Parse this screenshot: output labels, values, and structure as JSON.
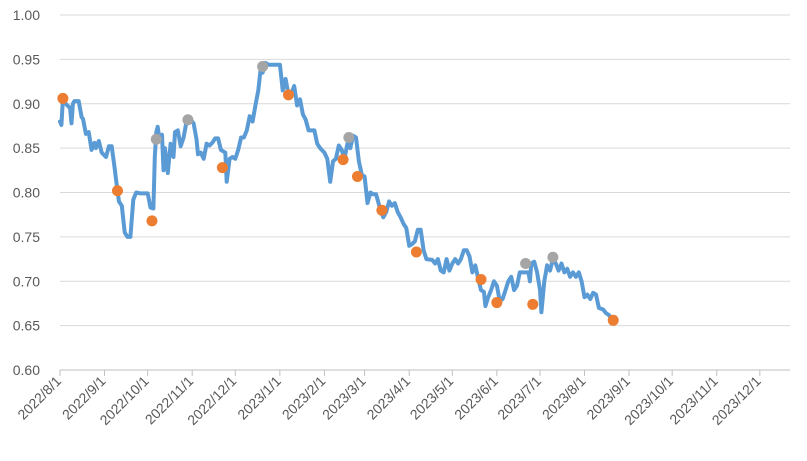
{
  "chart_data": {
    "type": "line",
    "title": "",
    "xlabel": "",
    "ylabel": "",
    "ylim": [
      0.6,
      1.0
    ],
    "y_ticks": [
      "0.60",
      "0.65",
      "0.70",
      "0.75",
      "0.80",
      "0.85",
      "0.90",
      "0.95",
      "1.00"
    ],
    "x_ticks": [
      "2022/8/1",
      "2022/9/1",
      "2022/10/1",
      "2022/11/1",
      "2022/12/1",
      "2023/1/1",
      "2023/2/1",
      "2023/3/1",
      "2023/4/1",
      "2023/5/1",
      "2023/6/1",
      "2023/7/1",
      "2023/8/1",
      "2023/9/1",
      "2023/10/1",
      "2023/11/1",
      "2023/12/1"
    ],
    "grid": true,
    "legend": "none",
    "colors": {
      "line": "#5B9BD5",
      "orange_markers": "#ED7D31",
      "gray_markers": "#A5A5A5",
      "grid": "#D9D9D9"
    },
    "x_range": [
      "2022/8/1",
      "2023/12/22"
    ],
    "series": [
      {
        "style": "line",
        "points": [
          [
            "2022/8/1",
            0.88
          ],
          [
            "2022/8/2",
            0.876
          ],
          [
            "2022/8/3",
            0.905
          ],
          [
            "2022/8/5",
            0.9
          ],
          [
            "2022/8/8",
            0.895
          ],
          [
            "2022/8/9",
            0.878
          ],
          [
            "2022/8/10",
            0.9
          ],
          [
            "2022/8/11",
            0.903
          ],
          [
            "2022/8/14",
            0.903
          ],
          [
            "2022/8/16",
            0.885
          ],
          [
            "2022/8/17",
            0.883
          ],
          [
            "2022/8/19",
            0.866
          ],
          [
            "2022/8/21",
            0.868
          ],
          [
            "2022/8/23",
            0.848
          ],
          [
            "2022/8/25",
            0.856
          ],
          [
            "2022/8/26",
            0.85
          ],
          [
            "2022/8/28",
            0.858
          ],
          [
            "2022/8/30",
            0.845
          ],
          [
            "2022/9/2",
            0.84
          ],
          [
            "2022/9/4",
            0.852
          ],
          [
            "2022/9/6",
            0.852
          ],
          [
            "2022/9/8",
            0.828
          ],
          [
            "2022/9/9",
            0.815
          ],
          [
            "2022/9/11",
            0.79
          ],
          [
            "2022/9/13",
            0.785
          ],
          [
            "2022/9/15",
            0.755
          ],
          [
            "2022/9/17",
            0.75
          ],
          [
            "2022/9/19",
            0.75
          ],
          [
            "2022/9/21",
            0.792
          ],
          [
            "2022/9/23",
            0.8
          ],
          [
            "2022/9/26",
            0.799
          ],
          [
            "2022/9/29",
            0.799
          ],
          [
            "2022/10/1",
            0.799
          ],
          [
            "2022/10/3",
            0.783
          ],
          [
            "2022/10/5",
            0.782
          ],
          [
            "2022/10/6",
            0.84
          ],
          [
            "2022/10/7",
            0.868
          ],
          [
            "2022/10/8",
            0.874
          ],
          [
            "2022/10/9",
            0.862
          ],
          [
            "2022/10/11",
            0.865
          ],
          [
            "2022/10/12",
            0.825
          ],
          [
            "2022/10/13",
            0.85
          ],
          [
            "2022/10/15",
            0.822
          ],
          [
            "2022/10/17",
            0.855
          ],
          [
            "2022/10/19",
            0.84
          ],
          [
            "2022/10/20",
            0.868
          ],
          [
            "2022/10/22",
            0.87
          ],
          [
            "2022/10/24",
            0.852
          ],
          [
            "2022/10/26",
            0.862
          ],
          [
            "2022/10/28",
            0.88
          ],
          [
            "2022/10/31",
            0.882
          ],
          [
            "2022/11/2",
            0.878
          ],
          [
            "2022/11/4",
            0.86
          ],
          [
            "2022/11/5",
            0.843
          ],
          [
            "2022/11/7",
            0.845
          ],
          [
            "2022/11/9",
            0.838
          ],
          [
            "2022/11/11",
            0.855
          ],
          [
            "2022/11/13",
            0.853
          ],
          [
            "2022/11/15",
            0.856
          ],
          [
            "2022/11/17",
            0.861
          ],
          [
            "2022/11/19",
            0.861
          ],
          [
            "2022/11/21",
            0.848
          ],
          [
            "2022/11/23",
            0.846
          ],
          [
            "2022/11/24",
            0.845
          ],
          [
            "2022/11/25",
            0.812
          ],
          [
            "2022/11/27",
            0.838
          ],
          [
            "2022/11/29",
            0.84
          ],
          [
            "2022/12/1",
            0.838
          ],
          [
            "2022/12/3",
            0.848
          ],
          [
            "2022/12/5",
            0.862
          ],
          [
            "2022/12/7",
            0.862
          ],
          [
            "2022/12/9",
            0.87
          ],
          [
            "2022/12/11",
            0.886
          ],
          [
            "2022/12/13",
            0.88
          ],
          [
            "2022/12/15",
            0.898
          ],
          [
            "2022/12/17",
            0.915
          ],
          [
            "2022/12/19",
            0.945
          ],
          [
            "2022/12/20",
            0.935
          ],
          [
            "2022/12/22",
            0.946
          ],
          [
            "2022/12/24",
            0.944
          ],
          [
            "2022/12/28",
            0.944
          ],
          [
            "2023/1/1",
            0.944
          ],
          [
            "2023/1/2",
            0.93
          ],
          [
            "2023/1/3",
            0.915
          ],
          [
            "2023/1/5",
            0.928
          ],
          [
            "2023/1/7",
            0.91
          ],
          [
            "2023/1/9",
            0.912
          ],
          [
            "2023/1/11",
            0.92
          ],
          [
            "2023/1/13",
            0.898
          ],
          [
            "2023/1/15",
            0.905
          ],
          [
            "2023/1/17",
            0.888
          ],
          [
            "2023/1/19",
            0.882
          ],
          [
            "2023/1/21",
            0.87
          ],
          [
            "2023/1/25",
            0.87
          ],
          [
            "2023/1/27",
            0.855
          ],
          [
            "2023/1/29",
            0.85
          ],
          [
            "2023/2/1",
            0.845
          ],
          [
            "2023/2/3",
            0.838
          ],
          [
            "2023/2/5",
            0.812
          ],
          [
            "2023/2/7",
            0.835
          ],
          [
            "2023/2/9",
            0.838
          ],
          [
            "2023/2/11",
            0.853
          ],
          [
            "2023/2/13",
            0.848
          ],
          [
            "2023/2/15",
            0.838
          ],
          [
            "2023/2/17",
            0.855
          ],
          [
            "2023/2/19",
            0.85
          ],
          [
            "2023/2/21",
            0.864
          ],
          [
            "2023/2/23",
            0.862
          ],
          [
            "2023/2/25",
            0.835
          ],
          [
            "2023/2/27",
            0.82
          ],
          [
            "2023/3/1",
            0.818
          ],
          [
            "2023/3/3",
            0.788
          ],
          [
            "2023/3/5",
            0.8
          ],
          [
            "2023/3/7",
            0.798
          ],
          [
            "2023/3/9",
            0.798
          ],
          [
            "2023/3/12",
            0.78
          ],
          [
            "2023/3/14",
            0.772
          ],
          [
            "2023/3/16",
            0.778
          ],
          [
            "2023/3/18",
            0.79
          ],
          [
            "2023/3/20",
            0.785
          ],
          [
            "2023/3/22",
            0.788
          ],
          [
            "2023/3/24",
            0.778
          ],
          [
            "2023/3/26",
            0.772
          ],
          [
            "2023/3/28",
            0.765
          ],
          [
            "2023/3/30",
            0.76
          ],
          [
            "2023/4/1",
            0.74
          ],
          [
            "2023/4/3",
            0.742
          ],
          [
            "2023/4/5",
            0.745
          ],
          [
            "2023/4/7",
            0.758
          ],
          [
            "2023/4/9",
            0.758
          ],
          [
            "2023/4/11",
            0.735
          ],
          [
            "2023/4/13",
            0.725
          ],
          [
            "2023/4/17",
            0.724
          ],
          [
            "2023/4/19",
            0.72
          ],
          [
            "2023/4/21",
            0.725
          ],
          [
            "2023/4/23",
            0.712
          ],
          [
            "2023/4/25",
            0.71
          ],
          [
            "2023/4/27",
            0.725
          ],
          [
            "2023/4/29",
            0.712
          ],
          [
            "2023/5/1",
            0.72
          ],
          [
            "2023/5/3",
            0.725
          ],
          [
            "2023/5/5",
            0.72
          ],
          [
            "2023/5/7",
            0.725
          ],
          [
            "2023/5/9",
            0.735
          ],
          [
            "2023/5/11",
            0.735
          ],
          [
            "2023/5/13",
            0.728
          ],
          [
            "2023/5/15",
            0.71
          ],
          [
            "2023/5/17",
            0.718
          ],
          [
            "2023/5/19",
            0.703
          ],
          [
            "2023/5/21",
            0.69
          ],
          [
            "2023/5/23",
            0.688
          ],
          [
            "2023/5/24",
            0.672
          ],
          [
            "2023/5/26",
            0.682
          ],
          [
            "2023/5/28",
            0.69
          ],
          [
            "2023/5/30",
            0.7
          ],
          [
            "2023/6/1",
            0.695
          ],
          [
            "2023/6/3",
            0.678
          ],
          [
            "2023/6/5",
            0.68
          ],
          [
            "2023/6/7",
            0.69
          ],
          [
            "2023/6/9",
            0.7
          ],
          [
            "2023/6/11",
            0.705
          ],
          [
            "2023/6/13",
            0.69
          ],
          [
            "2023/6/15",
            0.695
          ],
          [
            "2023/6/17",
            0.71
          ],
          [
            "2023/6/21",
            0.71
          ],
          [
            "2023/6/23",
            0.71
          ],
          [
            "2023/6/24",
            0.7
          ],
          [
            "2023/6/25",
            0.72
          ],
          [
            "2023/6/27",
            0.722
          ],
          [
            "2023/6/29",
            0.71
          ],
          [
            "2023/7/1",
            0.69
          ],
          [
            "2023/7/2",
            0.665
          ],
          [
            "2023/7/4",
            0.7
          ],
          [
            "2023/7/6",
            0.718
          ],
          [
            "2023/7/8",
            0.712
          ],
          [
            "2023/7/10",
            0.725
          ],
          [
            "2023/7/12",
            0.72
          ],
          [
            "2023/7/14",
            0.712
          ],
          [
            "2023/7/16",
            0.72
          ],
          [
            "2023/7/18",
            0.71
          ],
          [
            "2023/7/20",
            0.714
          ],
          [
            "2023/7/22",
            0.705
          ],
          [
            "2023/7/24",
            0.71
          ],
          [
            "2023/7/26",
            0.705
          ],
          [
            "2023/7/28",
            0.71
          ],
          [
            "2023/7/30",
            0.7
          ],
          [
            "2023/8/1",
            0.682
          ],
          [
            "2023/8/3",
            0.685
          ],
          [
            "2023/8/5",
            0.68
          ],
          [
            "2023/8/7",
            0.687
          ],
          [
            "2023/8/9",
            0.685
          ],
          [
            "2023/8/11",
            0.67
          ],
          [
            "2023/8/14",
            0.668
          ],
          [
            "2023/8/16",
            0.664
          ],
          [
            "2023/8/18",
            0.662
          ],
          [
            "2023/8/20",
            0.657
          ]
        ],
        "note_dates": "x in calendar dates on the axis scale"
      },
      {
        "style": "markers-orange",
        "points": [
          [
            "2022/8/3",
            0.906
          ],
          [
            "2022/9/10",
            0.802
          ],
          [
            "2022/10/4",
            0.768
          ],
          [
            "2022/11/22",
            0.828
          ],
          [
            "2023/1/7",
            0.91
          ],
          [
            "2023/2/14",
            0.837
          ],
          [
            "2023/2/24",
            0.818
          ],
          [
            "2023/3/13",
            0.78
          ],
          [
            "2023/4/6",
            0.733
          ],
          [
            "2023/5/21",
            0.702
          ],
          [
            "2023/6/1",
            0.676
          ],
          [
            "2023/6/26",
            0.674
          ],
          [
            "2023/8/21",
            0.656
          ]
        ]
      },
      {
        "style": "markers-gray",
        "points": [
          [
            "2022/10/7",
            0.86
          ],
          [
            "2022/10/29",
            0.882
          ],
          [
            "2022/12/20",
            0.942
          ],
          [
            "2023/2/18",
            0.862
          ],
          [
            "2023/6/21",
            0.72
          ],
          [
            "2023/7/10",
            0.727
          ]
        ]
      }
    ]
  }
}
